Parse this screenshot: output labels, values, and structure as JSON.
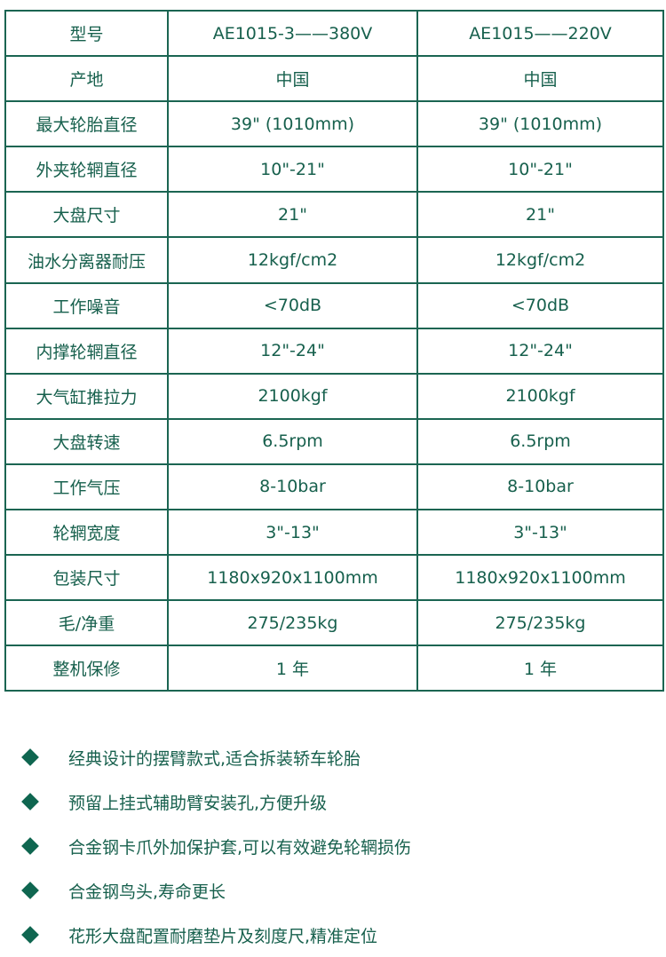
{
  "table": {
    "rows": [
      [
        "型号",
        "AE1015-3——380V",
        "AE1015——220V"
      ],
      [
        "产地",
        "中国",
        "中国"
      ],
      [
        "最大轮胎直径",
        "39\" (1010mm)",
        "39\" (1010mm)"
      ],
      [
        "外夹轮辋直径",
        "10\"-21\"",
        "10\"-21\""
      ],
      [
        "大盘尺寸",
        "21\"",
        "21\""
      ],
      [
        "油水分离器耐压",
        "12kgf/cm2",
        "12kgf/cm2"
      ],
      [
        "工作噪音",
        "<70dB",
        "<70dB"
      ],
      [
        "内撑轮辋直径",
        "12\"-24\"",
        "12\"-24\""
      ],
      [
        "大气缸推拉力",
        "2100kgf",
        "2100kgf"
      ],
      [
        "大盘转速",
        "6.5rpm",
        "6.5rpm"
      ],
      [
        "工作气压",
        "8-10bar",
        "8-10bar"
      ],
      [
        "轮辋宽度",
        "3\"-13\"",
        "3\"-13\""
      ],
      [
        "包装尺寸",
        "1180x920x1100mm",
        "1180x920x1100mm"
      ],
      [
        "毛/净重",
        "275/235kg",
        "275/235kg"
      ],
      [
        "整机保修",
        "1 年",
        "1 年"
      ]
    ]
  },
  "features": [
    "经典设计的摆臂款式,适合拆装轿车轮胎",
    "预留上挂式辅助臂安装孔,方便升级",
    "合金钢卡爪外加保护套,可以有效避免轮辋损伤",
    "合金钢鸟头,寿命更长",
    "花形大盘配置耐磨垫片及刻度尺,精准定位"
  ],
  "colors": {
    "accent": "#1b6552",
    "text": "#17604d"
  }
}
